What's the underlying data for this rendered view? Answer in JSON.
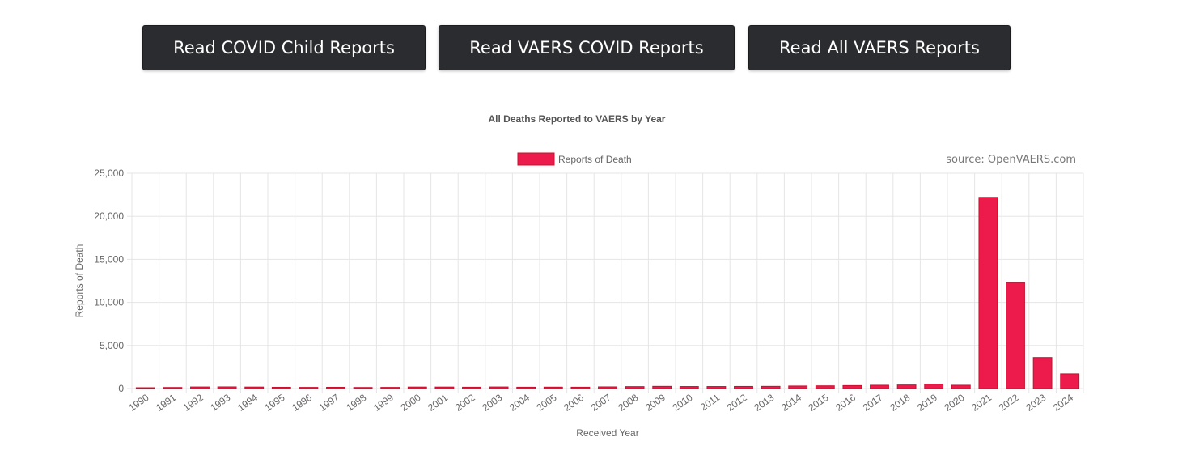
{
  "buttons": {
    "child_reports": "Read COVID Child Reports",
    "vaers_covid_reports": "Read VAERS COVID Reports",
    "all_vaers_reports": "Read All VAERS Reports"
  },
  "source_label": "source: OpenVAERS.com",
  "colors": {
    "bar_fill": "#ec1b4b",
    "bar_border": "#c8102e",
    "button_bg": "#2b2c2f",
    "grid": "#e5e5e5"
  },
  "chart_data": {
    "type": "bar",
    "title": "All Deaths Reported to VAERS by Year",
    "xlabel": "Received Year",
    "ylabel": "Reports of Death",
    "ylim": [
      0,
      25000
    ],
    "yticks": [
      0,
      5000,
      10000,
      15000,
      20000,
      25000
    ],
    "ytick_labels": [
      "0",
      "5,000",
      "10,000",
      "15,000",
      "20,000",
      "25,000"
    ],
    "grid": true,
    "legend_position": "top-center",
    "categories": [
      "1990",
      "1991",
      "1992",
      "1993",
      "1994",
      "1995",
      "1996",
      "1997",
      "1998",
      "1999",
      "2000",
      "2001",
      "2002",
      "2003",
      "2004",
      "2005",
      "2006",
      "2007",
      "2008",
      "2009",
      "2010",
      "2011",
      "2012",
      "2013",
      "2014",
      "2015",
      "2016",
      "2017",
      "2018",
      "2019",
      "2020",
      "2021",
      "2022",
      "2023",
      "2024"
    ],
    "series": [
      {
        "name": "Reports of Death",
        "values": [
          40,
          120,
          180,
          190,
          170,
          140,
          130,
          140,
          120,
          130,
          170,
          170,
          150,
          180,
          150,
          160,
          150,
          190,
          220,
          250,
          230,
          230,
          240,
          250,
          290,
          310,
          340,
          380,
          410,
          500,
          380,
          22200,
          12300,
          3600,
          1700
        ]
      }
    ]
  }
}
